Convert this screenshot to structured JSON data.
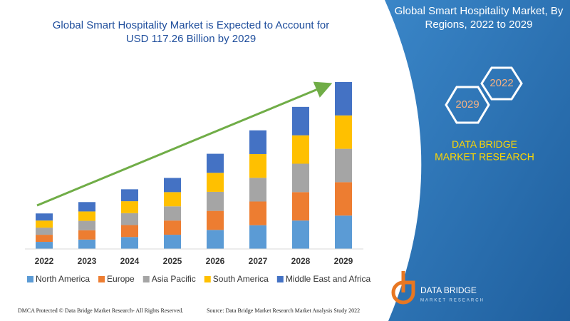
{
  "chart_data": {
    "type": "stacked_bar",
    "title": "Global Smart Hospitality Market is Expected to Account for USD 117.26 Billion by 2029",
    "categories": [
      "2022",
      "2023",
      "2024",
      "2025",
      "2026",
      "2027",
      "2028",
      "2029"
    ],
    "series": [
      {
        "name": "North America",
        "color": "#5b9bd5",
        "values": [
          5,
          6.6,
          8.4,
          10,
          13.4,
          16.7,
          20,
          23.5
        ]
      },
      {
        "name": "Europe",
        "color": "#ed7d31",
        "values": [
          5,
          6.6,
          8.4,
          10,
          13.4,
          16.7,
          20,
          23.5
        ]
      },
      {
        "name": "Asia Pacific",
        "color": "#a5a5a5",
        "values": [
          5,
          6.6,
          8.4,
          10,
          13.4,
          16.7,
          20,
          23.5
        ]
      },
      {
        "name": "South America",
        "color": "#ffc000",
        "values": [
          5,
          6.6,
          8.4,
          10,
          13.4,
          16.7,
          20,
          23.5
        ]
      },
      {
        "name": "Middle East and Africa",
        "color": "#4472c4",
        "values": [
          5,
          6.6,
          8.4,
          10,
          13.4,
          16.7,
          20,
          23.5
        ]
      }
    ]
  },
  "panel": {
    "title": "Global Smart Hospitality Market, By Regions, 2022 to 2029",
    "hexagon_top": "2022",
    "hexagon_bottom": "2029",
    "brand": "DATA BRIDGE MARKET RESEARCH"
  },
  "logo": {
    "name": "DATA BRIDGE",
    "tagline": "MARKET RESEARCH"
  },
  "footer": {
    "left": "DMCA Protected © Data Bridge Market Research- All Rights Reserved.",
    "right": "Source: Data Bridge Market Research Market Analysis Study 2022"
  }
}
